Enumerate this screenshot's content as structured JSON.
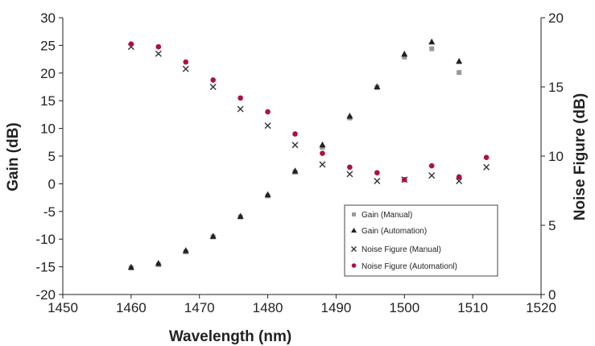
{
  "chart_data": {
    "type": "scatter",
    "xlabel": "Wavelength (nm)",
    "ylabel_left": "Gain (dB)",
    "ylabel_right": "Noise Figure (dB)",
    "xlim": [
      1450,
      1520
    ],
    "ylim_left": [
      -20,
      30
    ],
    "ylim_right": [
      0,
      20
    ],
    "x_ticks": [
      "1450",
      "1460",
      "1470",
      "1480",
      "1490",
      "1500",
      "1510",
      "1520"
    ],
    "y_left_ticks": [
      "-20",
      "-15",
      "-10",
      "-5",
      "0",
      "5",
      "10",
      "15",
      "20",
      "25",
      "30"
    ],
    "y_right_ticks": [
      "0",
      "5",
      "10",
      "15",
      "20"
    ],
    "grid": false,
    "legend_position": "bottom-right",
    "series": [
      {
        "name": "Gain (Manual)",
        "axis": "left",
        "marker": "square",
        "color": "#999999",
        "x": [
          1460,
          1464,
          1468,
          1472,
          1476,
          1480,
          1484,
          1488,
          1492,
          1496,
          1500,
          1504,
          1508
        ],
        "y": [
          -15.2,
          -14.6,
          -12.3,
          -9.6,
          -6.0,
          -2.2,
          2.1,
          6.6,
          11.9,
          17.4,
          22.9,
          24.4,
          20.1
        ]
      },
      {
        "name": "Gain (Automation)",
        "axis": "left",
        "marker": "triangle",
        "color": "#222222",
        "x": [
          1460,
          1464,
          1468,
          1472,
          1476,
          1480,
          1484,
          1488,
          1492,
          1496,
          1500,
          1504,
          1508
        ],
        "y": [
          -15.1,
          -14.4,
          -12.1,
          -9.5,
          -5.9,
          -2.0,
          2.3,
          7.0,
          12.2,
          17.5,
          23.4,
          25.6,
          22.1
        ]
      },
      {
        "name": "Noise Figure (Manual)",
        "axis": "right",
        "marker": "x",
        "color": "#333333",
        "x": [
          1460,
          1464,
          1468,
          1472,
          1476,
          1480,
          1484,
          1488,
          1492,
          1496,
          1500,
          1504,
          1508,
          1512
        ],
        "y": [
          17.9,
          17.4,
          16.3,
          15.0,
          13.4,
          12.2,
          10.8,
          9.4,
          8.7,
          8.2,
          8.3,
          8.6,
          8.2,
          9.2
        ]
      },
      {
        "name": "Noise Figure (Automationl)",
        "axis": "right",
        "marker": "dot",
        "color": "#b0103a",
        "x": [
          1460,
          1464,
          1468,
          1472,
          1476,
          1480,
          1484,
          1488,
          1492,
          1496,
          1500,
          1504,
          1508,
          1512
        ],
        "y": [
          18.1,
          17.9,
          16.8,
          15.5,
          14.2,
          13.2,
          11.6,
          10.2,
          9.2,
          8.8,
          8.3,
          9.3,
          8.5,
          9.9
        ]
      }
    ]
  }
}
